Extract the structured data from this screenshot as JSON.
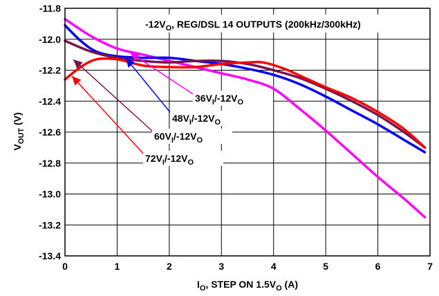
{
  "chart_data": {
    "type": "line",
    "title": "-12VO, REG/DSL 14 OUTPUTS (200kHz/300kHz)",
    "title_parts": {
      "main": "-12V",
      "sub": "O",
      "rest": ", REG/DSL 14 OUTPUTS (200kHz/300kHz)"
    },
    "xlabel": "IO, STEP ON 1.5VO (A)",
    "xlabel_parts": {
      "a": "I",
      "a_sub": "O",
      "b": ", STEP ON 1.5V",
      "b_sub": "O",
      "c": " (A)"
    },
    "ylabel": "VOUT (V)",
    "ylabel_parts": {
      "a": "V",
      "a_sub": "OUT",
      "b": " (V)"
    },
    "xlim": [
      0,
      7
    ],
    "ylim": [
      -13.4,
      -11.8
    ],
    "xticks": [
      "0",
      "1",
      "2",
      "3",
      "4",
      "5",
      "6",
      "7"
    ],
    "yticks": [
      "-11.8",
      "-12.0",
      "-12.2",
      "-12.4",
      "-12.6",
      "-12.8",
      "-13.0",
      "-13.2",
      "-13.4"
    ],
    "grid": true,
    "series": [
      {
        "name": "36VI/-12VO",
        "label_parts": {
          "a": "36V",
          "a_sub": "I",
          "b": "/-12V",
          "b_sub": "O"
        },
        "color": "#ff00ff",
        "x": [
          0,
          0.5,
          1.0,
          1.5,
          2.0,
          2.5,
          3.0,
          3.5,
          4.0,
          4.5,
          5.0,
          5.5,
          6.0,
          6.5,
          6.9
        ],
        "y": [
          -11.87,
          -11.98,
          -12.06,
          -12.1,
          -12.14,
          -12.18,
          -12.22,
          -12.26,
          -12.32,
          -12.45,
          -12.59,
          -12.74,
          -12.89,
          -13.03,
          -13.15
        ]
      },
      {
        "name": "48VI/-12VO",
        "label_parts": {
          "a": "48V",
          "a_sub": "I",
          "b": "/-12V",
          "b_sub": "O"
        },
        "color": "#0000ff",
        "x": [
          0,
          0.3,
          0.6,
          1.0,
          1.5,
          2.0,
          2.5,
          3.0,
          3.5,
          4.0,
          4.5,
          5.0,
          5.5,
          6.0,
          6.5,
          6.9
        ],
        "y": [
          -11.91,
          -12.01,
          -12.08,
          -12.11,
          -12.12,
          -12.12,
          -12.14,
          -12.16,
          -12.19,
          -12.23,
          -12.29,
          -12.37,
          -12.46,
          -12.55,
          -12.65,
          -12.73
        ]
      },
      {
        "name": "60VI/-12VO",
        "label_parts": {
          "a": "60V",
          "a_sub": "I",
          "b": "/-12V",
          "b_sub": "O"
        },
        "color": "#7a1450",
        "x": [
          0,
          0.5,
          1.0,
          1.5,
          2.0,
          2.5,
          3.0,
          3.5,
          4.0,
          4.5,
          5.0,
          5.5,
          6.0,
          6.5,
          6.9
        ],
        "y": [
          -12.01,
          -12.08,
          -12.12,
          -12.14,
          -12.15,
          -12.14,
          -12.14,
          -12.16,
          -12.2,
          -12.25,
          -12.32,
          -12.4,
          -12.49,
          -12.6,
          -12.7
        ]
      },
      {
        "name": "72VI/-12VO",
        "label_parts": {
          "a": "72V",
          "a_sub": "I",
          "b": "/-12V",
          "b_sub": "O"
        },
        "color": "#ff0000",
        "x": [
          0,
          0.3,
          0.6,
          1.0,
          1.5,
          2.0,
          2.5,
          3.0,
          3.5,
          3.8,
          4.2,
          4.6,
          5.0,
          5.5,
          6.0,
          6.5,
          6.9
        ],
        "y": [
          -12.26,
          -12.18,
          -12.13,
          -12.13,
          -12.17,
          -12.18,
          -12.18,
          -12.16,
          -12.15,
          -12.15,
          -12.19,
          -12.25,
          -12.31,
          -12.38,
          -12.47,
          -12.58,
          -12.7
        ]
      }
    ]
  }
}
